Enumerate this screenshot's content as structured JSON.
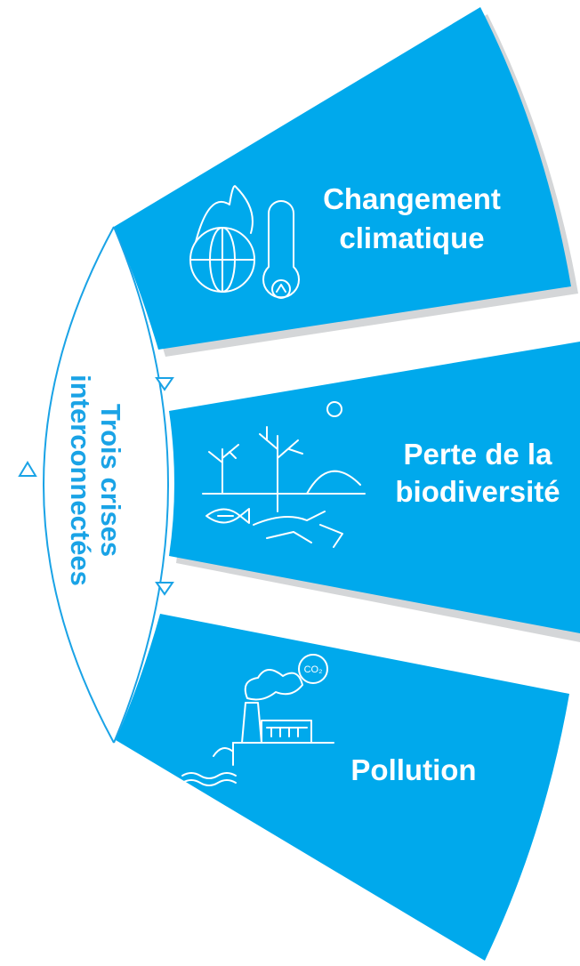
{
  "title": [
    "Trois crises",
    "interconnectées"
  ],
  "segments": [
    {
      "label": [
        "Changement",
        "climatique"
      ]
    },
    {
      "label": [
        "Perte de la",
        "biodiversité"
      ]
    },
    {
      "label": [
        "Pollution"
      ],
      "icon_text": "CO₂"
    }
  ]
}
